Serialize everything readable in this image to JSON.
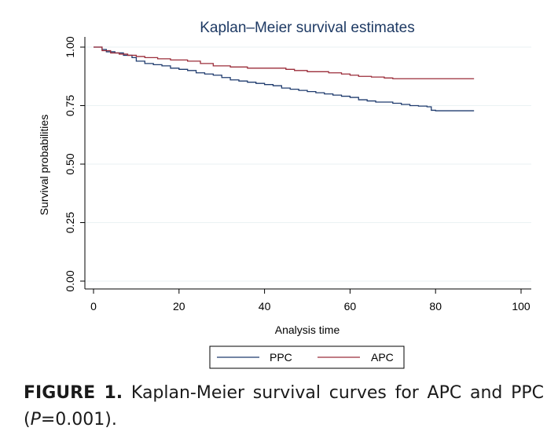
{
  "figure": {
    "label": "FIGURE 1.",
    "caption_text": "Kaplan-Meier survival curves for APC and PPC",
    "caption_open": "(",
    "p_symbol": "P",
    "p_value": "=0.001).",
    "background_color": "#ffffff",
    "grid_color": "#eaf2f3",
    "axis_color": "#000000"
  },
  "chart_data": {
    "type": "line",
    "title": "Kaplan–Meier survival estimates",
    "xlabel": "Analysis time",
    "ylabel": "Survival probabilities",
    "xlim": [
      0,
      100
    ],
    "ylim": [
      0,
      1
    ],
    "xticks": [
      0,
      20,
      40,
      60,
      80,
      100
    ],
    "xtick_labels": [
      "0",
      "20",
      "40",
      "60",
      "80",
      "100"
    ],
    "yticks": [
      0,
      0.25,
      0.5,
      0.75,
      1
    ],
    "ytick_labels": [
      "0.00",
      "0.25",
      "0.50",
      "0.75",
      "1.00"
    ],
    "grid": true,
    "legend_position": "bottom",
    "series": [
      {
        "name": "PPC",
        "color": "#1f3b6e",
        "x": [
          0,
          2,
          3,
          5,
          7,
          9,
          10,
          12,
          14,
          16,
          18,
          20,
          22,
          24,
          26,
          28,
          30,
          32,
          34,
          36,
          38,
          40,
          42,
          44,
          46,
          48,
          50,
          52,
          54,
          56,
          58,
          60,
          62,
          64,
          66,
          68,
          70,
          72,
          74,
          76,
          78,
          79,
          80,
          85,
          89
        ],
        "values": [
          1.0,
          0.99,
          0.98,
          0.975,
          0.965,
          0.955,
          0.94,
          0.93,
          0.925,
          0.92,
          0.91,
          0.905,
          0.9,
          0.89,
          0.885,
          0.88,
          0.87,
          0.86,
          0.855,
          0.85,
          0.845,
          0.84,
          0.835,
          0.825,
          0.82,
          0.815,
          0.81,
          0.805,
          0.8,
          0.795,
          0.79,
          0.785,
          0.775,
          0.77,
          0.765,
          0.765,
          0.76,
          0.755,
          0.75,
          0.748,
          0.745,
          0.73,
          0.728,
          0.728,
          0.728
        ]
      },
      {
        "name": "APC",
        "color": "#9b2d3a",
        "x": [
          0,
          2,
          4,
          6,
          8,
          10,
          12,
          15,
          18,
          22,
          25,
          28,
          32,
          36,
          40,
          45,
          47,
          50,
          55,
          58,
          60,
          62,
          65,
          68,
          70,
          75,
          80,
          85,
          89
        ],
        "values": [
          1.0,
          0.985,
          0.975,
          0.97,
          0.965,
          0.96,
          0.955,
          0.95,
          0.945,
          0.94,
          0.93,
          0.92,
          0.915,
          0.91,
          0.91,
          0.905,
          0.9,
          0.895,
          0.89,
          0.885,
          0.88,
          0.875,
          0.872,
          0.868,
          0.865,
          0.865,
          0.865,
          0.865,
          0.865
        ]
      }
    ]
  }
}
